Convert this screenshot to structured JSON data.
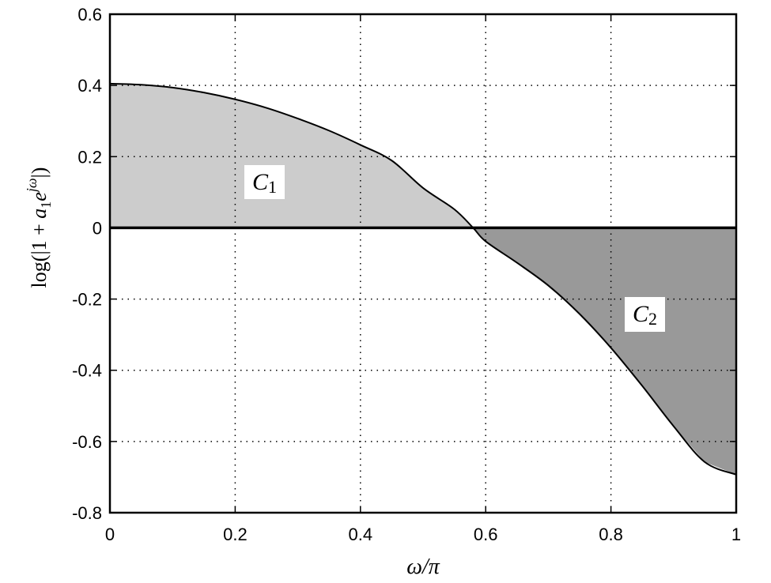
{
  "chart_data": {
    "type": "area",
    "title": "",
    "xlabel": "ω/π",
    "ylabel": "log(|1 + a₁e^{jω}|)",
    "xlim": [
      0,
      1
    ],
    "ylim": [
      -0.8,
      0.6
    ],
    "grid": true,
    "x_ticks": [
      "0",
      "0.2",
      "0.4",
      "0.6",
      "0.8",
      "1"
    ],
    "y_ticks": [
      "0.6",
      "0.4",
      "0.2",
      "0",
      "-0.2",
      "-0.4",
      "-0.6",
      "-0.8"
    ],
    "series": [
      {
        "name": "log|1 + a1 e^{jw}|",
        "x": [
          0,
          0.05,
          0.1,
          0.15,
          0.2,
          0.25,
          0.3,
          0.35,
          0.4,
          0.45,
          0.5,
          0.55,
          0.58,
          0.6,
          0.65,
          0.7,
          0.75,
          0.8,
          0.85,
          0.9,
          0.95,
          1.0
        ],
        "values": [
          0.405,
          0.402,
          0.394,
          0.38,
          0.361,
          0.337,
          0.307,
          0.273,
          0.233,
          0.189,
          0.112,
          0.052,
          0.0,
          -0.038,
          -0.098,
          -0.162,
          -0.242,
          -0.337,
          -0.444,
          -0.557,
          -0.658,
          -0.693
        ]
      }
    ],
    "annotations": [
      {
        "text": "C1",
        "region": "positive area (shaded light gray)",
        "x": 0.22,
        "y": 0.13
      },
      {
        "text": "C2",
        "region": "negative area (shaded dark gray)",
        "x": 0.86,
        "y": -0.25
      }
    ],
    "fill_colors": {
      "positive": "#cccccc",
      "negative": "#999999"
    }
  },
  "labels": {
    "c1_main": "C",
    "c1_sub": "1",
    "c2_main": "C",
    "c2_sub": "2",
    "xlabel": "ω/π"
  }
}
